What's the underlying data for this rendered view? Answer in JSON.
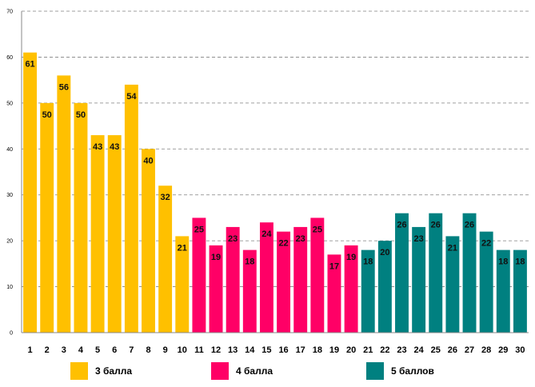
{
  "chart_data": {
    "type": "bar",
    "categories": [
      "1",
      "2",
      "3",
      "4",
      "5",
      "6",
      "7",
      "8",
      "9",
      "10",
      "11",
      "12",
      "13",
      "14",
      "15",
      "16",
      "17",
      "18",
      "19",
      "20",
      "21",
      "22",
      "23",
      "24",
      "25",
      "26",
      "27",
      "28",
      "29",
      "30"
    ],
    "values": [
      61,
      50,
      56,
      50,
      43,
      43,
      54,
      40,
      32,
      21,
      25,
      19,
      23,
      18,
      24,
      22,
      23,
      25,
      17,
      19,
      18,
      20,
      26,
      23,
      26,
      21,
      26,
      22,
      18,
      18
    ],
    "groups": [
      "3 балла",
      "3 балла",
      "3 балла",
      "3 балла",
      "3 балла",
      "3 балла",
      "3 балла",
      "3 балла",
      "3 балла",
      "3 балла",
      "4 балла",
      "4 балла",
      "4 балла",
      "4 балла",
      "4 балла",
      "4 балла",
      "4 балла",
      "4 балла",
      "4 балла",
      "4 балла",
      "5 баллов",
      "5 баллов",
      "5 баллов",
      "5 баллов",
      "5 баллов",
      "5 баллов",
      "5 баллов",
      "5 баллов",
      "5 баллов",
      "5 баллов"
    ],
    "title": "",
    "xlabel": "",
    "ylabel": "",
    "ylim": [
      0,
      70
    ],
    "yticks": [
      "0",
      "10",
      "20",
      "30",
      "40",
      "50",
      "60",
      "70"
    ],
    "grid": true,
    "legend_position": "bottom",
    "legend": [
      {
        "label": "3 балла",
        "color": "#FFC000"
      },
      {
        "label": "4 балла",
        "color": "#FF0066"
      },
      {
        "label": "5 баллов",
        "color": "#008080"
      }
    ]
  }
}
